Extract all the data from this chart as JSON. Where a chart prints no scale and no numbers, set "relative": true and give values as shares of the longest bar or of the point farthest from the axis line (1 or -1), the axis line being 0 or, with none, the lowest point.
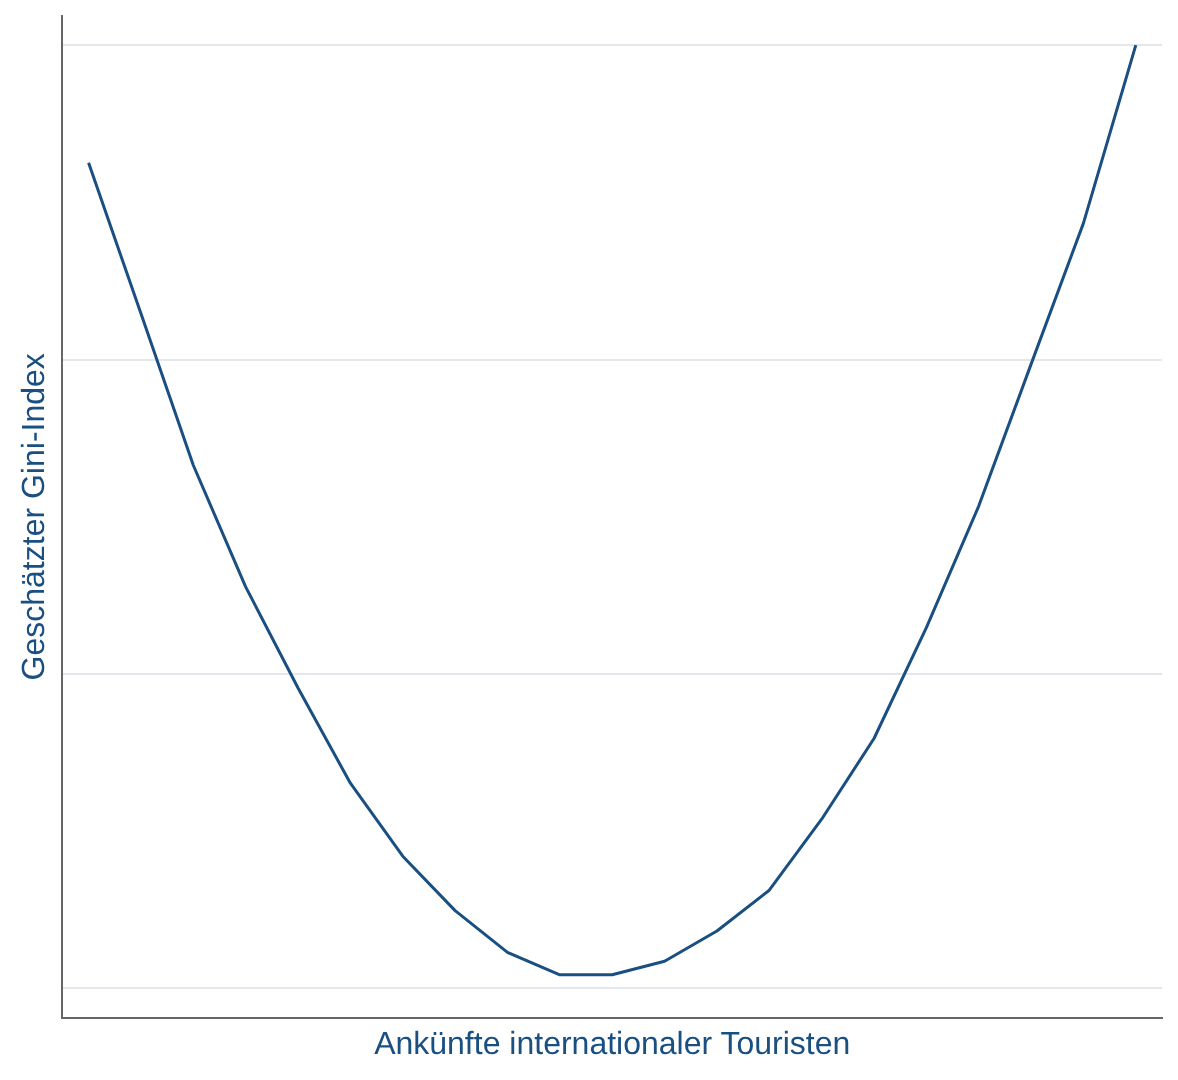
{
  "chart_data": {
    "type": "line",
    "relative": true,
    "xlabel": "Ankünfte internationaler Touristen",
    "ylabel": "Geschätzter Gini-Index",
    "categories": [
      null,
      null,
      null,
      null,
      null,
      null,
      null,
      null,
      null,
      null,
      null,
      null,
      null,
      null,
      null,
      null,
      null,
      null,
      null,
      null,
      null
    ],
    "series": [
      {
        "color": "#1a4f82",
        "values": [
          0.879,
          0.724,
          0.568,
          0.443,
          0.339,
          0.241,
          0.166,
          0.11,
          0.067,
          0.044,
          0.044,
          0.058,
          0.089,
          0.131,
          0.204,
          0.287,
          0.401,
          0.526,
          0.672,
          0.817,
          1
        ]
      }
    ],
    "grid": "y",
    "legend": false,
    "marker": "none",
    "line_style": "solid",
    "tick_labels": false
  }
}
